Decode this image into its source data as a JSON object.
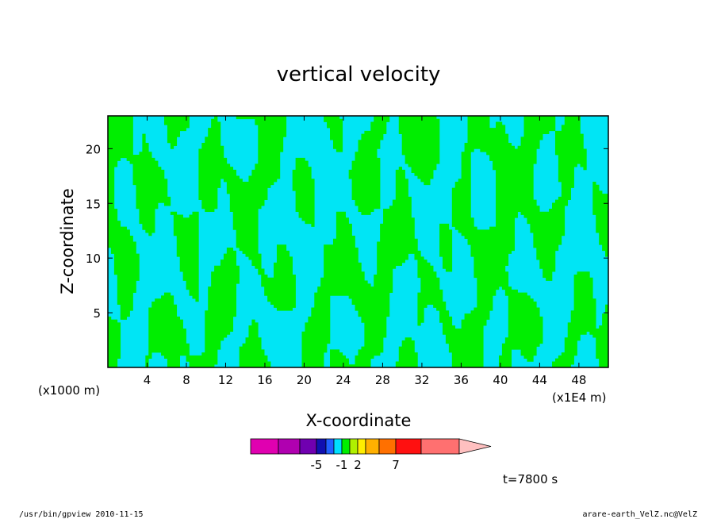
{
  "chart_data": {
    "type": "heatmap",
    "title": "vertical velocity",
    "xlabel": "X-coordinate",
    "ylabel": "Z-coordinate",
    "x_unit": "(x1E4 m)",
    "y_unit": "(x1000 m)",
    "xlim": [
      0,
      51
    ],
    "ylim": [
      0,
      23
    ],
    "x_ticks": [
      4,
      8,
      12,
      16,
      20,
      24,
      28,
      32,
      36,
      40,
      44,
      48
    ],
    "y_ticks": [
      5,
      10,
      15,
      20
    ],
    "x_tick_labels": [
      "4",
      "8",
      "12",
      "16",
      "20",
      "24",
      "28",
      "32",
      "36",
      "40",
      "44",
      "48"
    ],
    "y_tick_labels": [
      "5",
      "10",
      "15",
      "20"
    ],
    "field_colors": [
      "#00e5f5",
      "#00ee00"
    ],
    "colorbar": {
      "levels": [
        -5,
        -1,
        2,
        7
      ],
      "labels": [
        "-5",
        "-1",
        "2",
        "7"
      ],
      "colors": [
        "#e000b0",
        "#b000b0",
        "#7000b0",
        "#1010b0",
        "#2060ff",
        "#00e0ff",
        "#00ee00",
        "#b0f000",
        "#ffee00",
        "#ffb000",
        "#ff7000",
        "#ff1010",
        "#ff7070"
      ],
      "extend_color": "#ffc0c0"
    },
    "time_label": "t=7800 s"
  },
  "footer": {
    "left": "/usr/bin/gpview   2010-11-15",
    "right": "arare-earth_VelZ.nc@VelZ"
  }
}
